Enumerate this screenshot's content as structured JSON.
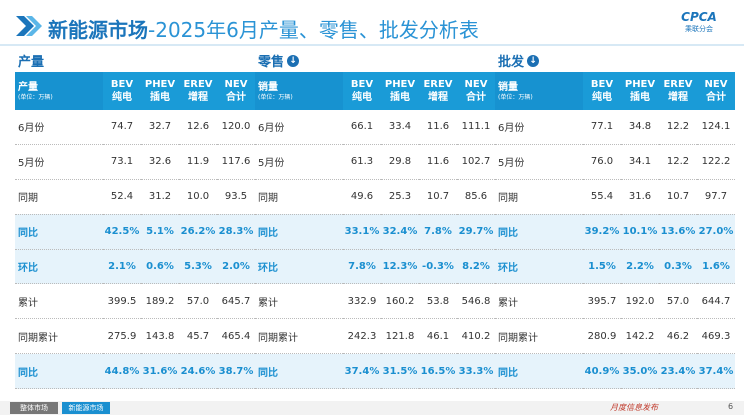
{
  "header": {
    "title_main": "新能源市场",
    "title_rest": "-2025年6月产量、零售、批发分析表",
    "logo": "CPCA",
    "logo_sub": "乘联分会"
  },
  "sections": [
    {
      "label": "产量",
      "arrow": false,
      "table": {
        "corner": "产量",
        "unit": "(单位：万辆)",
        "columns": [
          {
            "code": "BEV",
            "name": "纯电"
          },
          {
            "code": "PHEV",
            "name": "插电"
          },
          {
            "code": "EREV",
            "name": "增程"
          },
          {
            "code": "NEV",
            "name": "合计"
          }
        ],
        "rows": [
          {
            "label": "6月份",
            "highlight": false,
            "cells": [
              "74.7",
              "32.7",
              "12.6",
              "120.0"
            ]
          },
          {
            "label": "5月份",
            "highlight": false,
            "cells": [
              "73.1",
              "32.6",
              "11.9",
              "117.6"
            ]
          },
          {
            "label": "同期",
            "highlight": false,
            "cells": [
              "52.4",
              "31.2",
              "10.0",
              "93.5"
            ]
          },
          {
            "label": "同比",
            "highlight": true,
            "cells": [
              "42.5%",
              "5.1%",
              "26.2%",
              "28.3%"
            ]
          },
          {
            "label": "环比",
            "highlight": true,
            "cells": [
              "2.1%",
              "0.6%",
              "5.3%",
              "2.0%"
            ]
          },
          {
            "label": "累计",
            "highlight": false,
            "cells": [
              "399.5",
              "189.2",
              "57.0",
              "645.7"
            ]
          },
          {
            "label": "同期累计",
            "highlight": false,
            "cells": [
              "275.9",
              "143.8",
              "45.7",
              "465.4"
            ]
          },
          {
            "label": "同比",
            "highlight": true,
            "cells": [
              "44.8%",
              "31.6%",
              "24.6%",
              "38.7%"
            ]
          }
        ]
      }
    },
    {
      "label": "零售",
      "arrow": true,
      "table": {
        "corner": "销量",
        "unit": "(单位：万辆)",
        "columns": [
          {
            "code": "BEV",
            "name": "纯电"
          },
          {
            "code": "PHEV",
            "name": "插电"
          },
          {
            "code": "EREV",
            "name": "增程"
          },
          {
            "code": "NEV",
            "name": "合计"
          }
        ],
        "rows": [
          {
            "label": "6月份",
            "highlight": false,
            "cells": [
              "66.1",
              "33.4",
              "11.6",
              "111.1"
            ]
          },
          {
            "label": "5月份",
            "highlight": false,
            "cells": [
              "61.3",
              "29.8",
              "11.6",
              "102.7"
            ]
          },
          {
            "label": "同期",
            "highlight": false,
            "cells": [
              "49.6",
              "25.3",
              "10.7",
              "85.6"
            ]
          },
          {
            "label": "同比",
            "highlight": true,
            "cells": [
              "33.1%",
              "32.4%",
              "7.8%",
              "29.7%"
            ]
          },
          {
            "label": "环比",
            "highlight": true,
            "cells": [
              "7.8%",
              "12.3%",
              "-0.3%",
              "8.2%"
            ]
          },
          {
            "label": "累计",
            "highlight": false,
            "cells": [
              "332.9",
              "160.2",
              "53.8",
              "546.8"
            ]
          },
          {
            "label": "同期累计",
            "highlight": false,
            "cells": [
              "242.3",
              "121.8",
              "46.1",
              "410.2"
            ]
          },
          {
            "label": "同比",
            "highlight": true,
            "cells": [
              "37.4%",
              "31.5%",
              "16.5%",
              "33.3%"
            ]
          }
        ]
      }
    },
    {
      "label": "批发",
      "arrow": true,
      "table": {
        "corner": "销量",
        "unit": "(单位：万辆)",
        "columns": [
          {
            "code": "BEV",
            "name": "纯电"
          },
          {
            "code": "PHEV",
            "name": "插电"
          },
          {
            "code": "EREV",
            "name": "增程"
          },
          {
            "code": "NEV",
            "name": "合计"
          }
        ],
        "rows": [
          {
            "label": "6月份",
            "highlight": false,
            "cells": [
              "77.1",
              "34.8",
              "12.2",
              "124.1"
            ]
          },
          {
            "label": "5月份",
            "highlight": false,
            "cells": [
              "76.0",
              "34.1",
              "12.2",
              "122.2"
            ]
          },
          {
            "label": "同期",
            "highlight": false,
            "cells": [
              "55.4",
              "31.6",
              "10.7",
              "97.7"
            ]
          },
          {
            "label": "同比",
            "highlight": true,
            "cells": [
              "39.2%",
              "10.1%",
              "13.6%",
              "27.0%"
            ]
          },
          {
            "label": "环比",
            "highlight": true,
            "cells": [
              "1.5%",
              "2.2%",
              "0.3%",
              "1.6%"
            ]
          },
          {
            "label": "累计",
            "highlight": false,
            "cells": [
              "395.7",
              "192.0",
              "57.0",
              "644.7"
            ]
          },
          {
            "label": "同期累计",
            "highlight": false,
            "cells": [
              "280.9",
              "142.2",
              "46.2",
              "469.3"
            ]
          },
          {
            "label": "同比",
            "highlight": true,
            "cells": [
              "40.9%",
              "35.0%",
              "23.4%",
              "37.4%"
            ]
          }
        ]
      }
    }
  ],
  "footer": {
    "tabs": [
      "整体市场",
      "新能源市场"
    ],
    "note": "月度信息发布",
    "page": "6"
  }
}
